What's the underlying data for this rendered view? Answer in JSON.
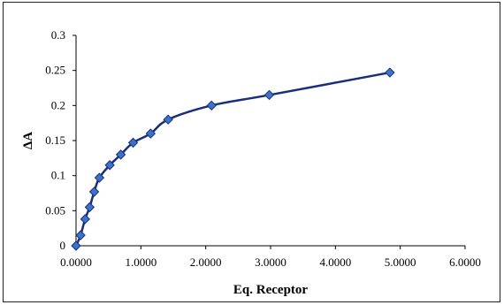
{
  "chart_data": {
    "type": "scatter",
    "title": "",
    "xlabel": "Eq. Receptor",
    "ylabel": "ΔA",
    "xlim": [
      0,
      6
    ],
    "ylim": [
      0,
      0.3
    ],
    "x_ticks": [
      "0.0000",
      "1.0000",
      "2.0000",
      "3.0000",
      "4.0000",
      "5.0000",
      "6.0000"
    ],
    "y_ticks": [
      "0",
      "0.05",
      "0.1",
      "0.15",
      "0.2",
      "0.25",
      "0.3"
    ],
    "grid": false,
    "legend": "none",
    "series": [
      {
        "marker": "diamond",
        "marker_color": "#3a73c9",
        "line_color": "#1a2f7a",
        "smooth": true,
        "x": [
          0.0,
          0.07,
          0.14,
          0.21,
          0.28,
          0.36,
          0.52,
          0.69,
          0.88,
          1.15,
          1.42,
          2.09,
          2.98,
          4.84
        ],
        "y": [
          0.0,
          0.015,
          0.038,
          0.055,
          0.077,
          0.097,
          0.115,
          0.13,
          0.147,
          0.16,
          0.18,
          0.2,
          0.215,
          0.247
        ]
      }
    ]
  }
}
